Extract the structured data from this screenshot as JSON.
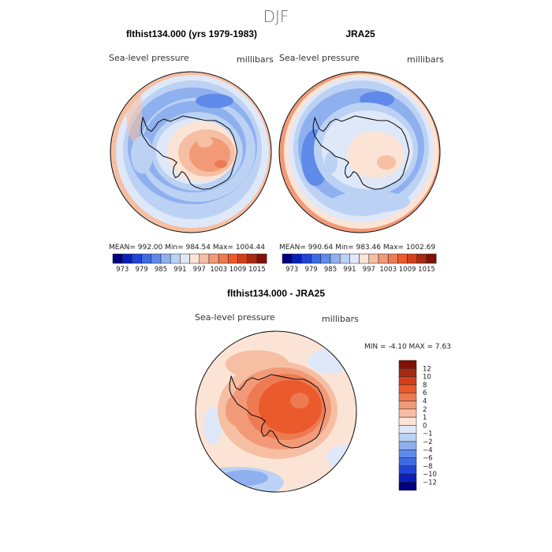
{
  "season": "DJF",
  "colors": {
    "seq": [
      "#00007f",
      "#0a1fb8",
      "#1f44d6",
      "#3d6be3",
      "#5f8aea",
      "#8fb0ef",
      "#bcd2f4",
      "#dfe8f8",
      "#fbe4d6",
      "#f6bfa3",
      "#f29a78",
      "#ee7a52",
      "#ea5a2c",
      "#d43f1b",
      "#a82a10",
      "#7f1205"
    ],
    "diff": [
      "#00007f",
      "#0a1fb8",
      "#1f44d6",
      "#3d6be3",
      "#5f8aea",
      "#8fb0ef",
      "#bcd2f4",
      "#dfe8f8",
      "#fbe4d6",
      "#f6bfa3",
      "#f29a78",
      "#ee7a52",
      "#ea5a2c",
      "#d43f1b",
      "#a82a10",
      "#7f1205"
    ]
  },
  "chart_data": [
    {
      "type": "heatmap",
      "title": "flthist134.000 (yrs 1979-1983)",
      "subtitle": "Sea-level pressure",
      "units": "millibars",
      "projection": "south-polar-stereographic",
      "stats": "MEAN= 992.00   Min= 984.54   Max= 1004.44",
      "mean": 992.0,
      "min": 984.54,
      "max": 1004.44,
      "colorbar_levels": [
        973,
        976,
        979,
        982,
        985,
        988,
        991,
        994,
        997,
        1000,
        1003,
        1006,
        1009,
        1012,
        1015
      ],
      "colorbar_labels": [
        "973",
        "979",
        "985",
        "991",
        "997",
        "1003",
        "1009",
        "1015"
      ]
    },
    {
      "type": "heatmap",
      "title": "JRA25",
      "subtitle": "Sea-level pressure",
      "units": "millibars",
      "projection": "south-polar-stereographic",
      "stats": "MEAN= 990.64   Min= 983.46   Max= 1002.69",
      "mean": 990.64,
      "min": 983.46,
      "max": 1002.69,
      "colorbar_levels": [
        973,
        976,
        979,
        982,
        985,
        988,
        991,
        994,
        997,
        1000,
        1003,
        1006,
        1009,
        1012,
        1015
      ],
      "colorbar_labels": [
        "973",
        "979",
        "985",
        "991",
        "997",
        "1003",
        "1009",
        "1015"
      ]
    },
    {
      "type": "heatmap",
      "title": "flthist134.000 - JRA25",
      "subtitle": "Sea-level pressure",
      "units": "millibars",
      "projection": "south-polar-stereographic",
      "stats": "MIN =   -4.10 MAX =    7.63",
      "min": -4.1,
      "max": 7.63,
      "colorbar_levels": [
        -12,
        -10,
        -8,
        -6,
        -4,
        -2,
        -1,
        0,
        1,
        2,
        4,
        6,
        8,
        10,
        12
      ],
      "colorbar_labels": [
        "12",
        "10",
        "8",
        "6",
        "4",
        "2",
        "1",
        "0",
        "−1",
        "−2",
        "−4",
        "−6",
        "−8",
        "−10",
        "−12"
      ]
    }
  ]
}
